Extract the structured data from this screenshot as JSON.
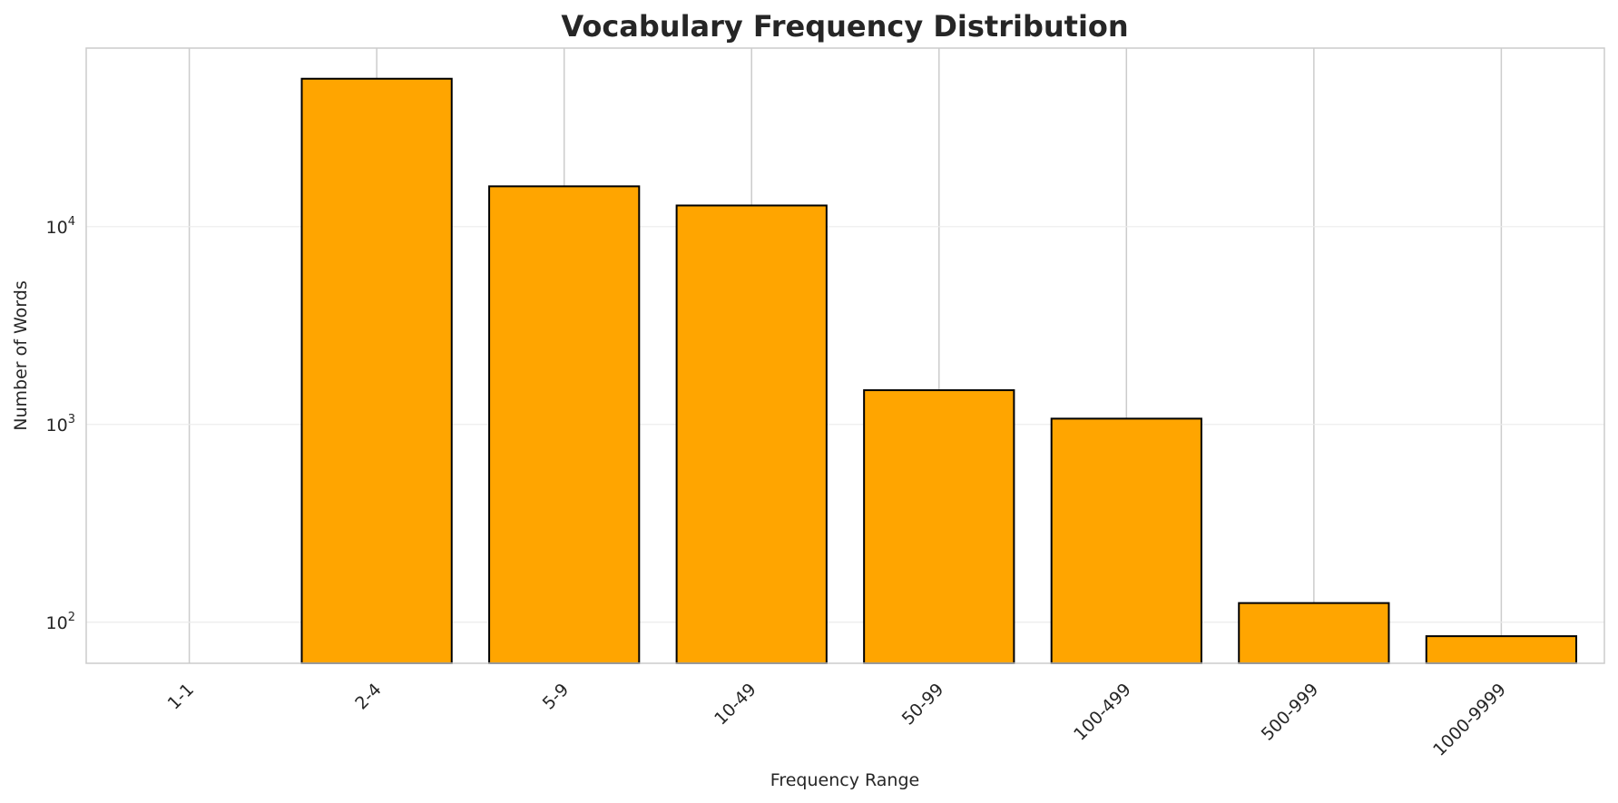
{
  "chart_data": {
    "type": "bar",
    "title": "Vocabulary Frequency Distribution",
    "xlabel": "Frequency Range",
    "ylabel": "Number of Words",
    "yscale": "log",
    "ylim": [
      62,
      80000
    ],
    "categories": [
      "1-1",
      "2-4",
      "5-9",
      "10-49",
      "50-99",
      "100-499",
      "500-999",
      "1000-9999"
    ],
    "values": [
      0,
      56000,
      16000,
      12800,
      1490,
      1070,
      125,
      85
    ],
    "yticks": [
      {
        "base": "10",
        "exp": "2",
        "value": 100
      },
      {
        "base": "10",
        "exp": "3",
        "value": 1000
      },
      {
        "base": "10",
        "exp": "4",
        "value": 10000
      }
    ],
    "grid": true,
    "bar_color": "#FFA500",
    "bar_edge_color": "#000000"
  }
}
